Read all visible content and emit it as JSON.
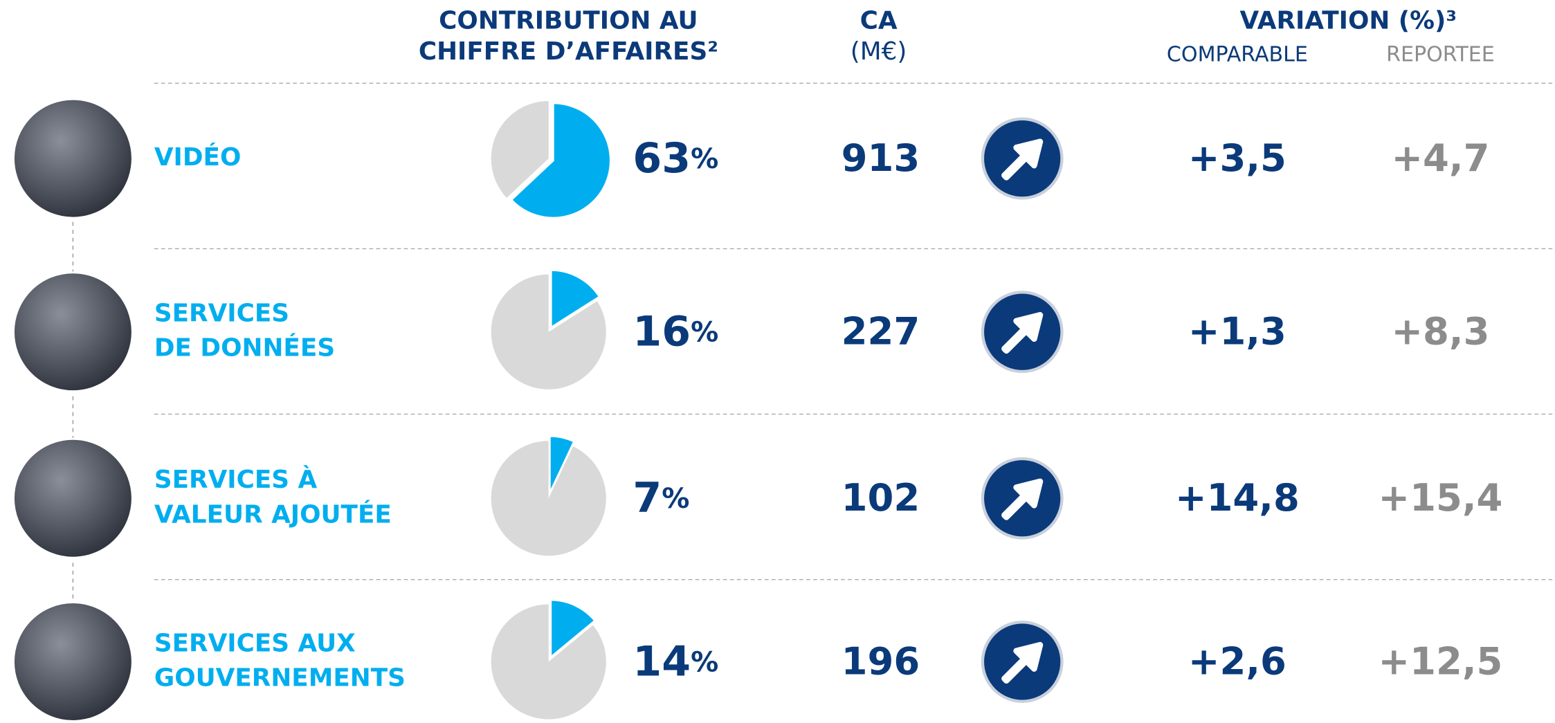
{
  "header": {
    "contribution": [
      "CONTRIBUTION AU",
      "CHIFFRE D’AFFAIRES²"
    ],
    "ca": [
      "CA",
      "(M€)"
    ],
    "variation": "VARIATION (%)³",
    "comparable": "COMPARABLE",
    "reportee": "REPORTEE"
  },
  "share_unit": "%",
  "rows": [
    {
      "label": [
        "VIDÉO"
      ],
      "share": 63,
      "ca": 913,
      "comparable": "+3,5",
      "reportee": "+4,7"
    },
    {
      "label": [
        "SERVICES",
        "DE DONNÉES"
      ],
      "share": 16,
      "ca": 227,
      "comparable": "+1,3",
      "reportee": "+8,3"
    },
    {
      "label": [
        "SERVICES À",
        "VALEUR AJOUTÉE"
      ],
      "share": 7,
      "ca": 102,
      "comparable": "+14,8",
      "reportee": "+15,4"
    },
    {
      "label": [
        "SERVICES AUX",
        "GOUVERNEMENTS"
      ],
      "share": 14,
      "ca": 196,
      "comparable": "+2,6",
      "reportee": "+12,5"
    }
  ]
}
